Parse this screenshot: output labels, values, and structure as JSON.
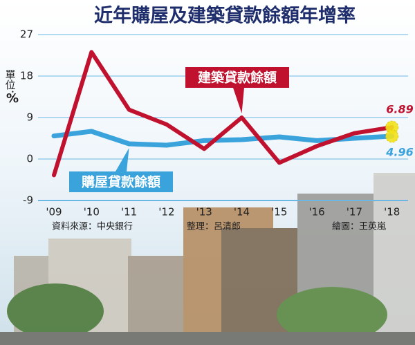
{
  "chart_data": {
    "type": "line",
    "title": "近年購屋及建築貸款餘額年增率",
    "unit": "單位：",
    "unit_symbol": "%",
    "categories": [
      "'09",
      "'10",
      "'11",
      "'12",
      "'13",
      "'14",
      "'15",
      "'16",
      "'17",
      "'18"
    ],
    "series": [
      {
        "name": "建築貸款餘額",
        "color": "#c0122e",
        "values": [
          -3.5,
          23.2,
          10.7,
          7.5,
          2.2,
          9.0,
          -0.8,
          2.8,
          5.6,
          6.89
        ]
      },
      {
        "name": "購屋貸款餘額",
        "color": "#3aa3dc",
        "values": [
          5.0,
          6.0,
          3.3,
          3.0,
          4.0,
          4.2,
          4.8,
          4.0,
          4.5,
          4.96
        ]
      }
    ],
    "ylim": [
      -9,
      27
    ],
    "yticks": [
      -9,
      0,
      9,
      18,
      27
    ],
    "grid": true,
    "sources": [
      "資料來源：中央銀行",
      "整理：呂清郎",
      "繪圖：王英嵐"
    ]
  }
}
